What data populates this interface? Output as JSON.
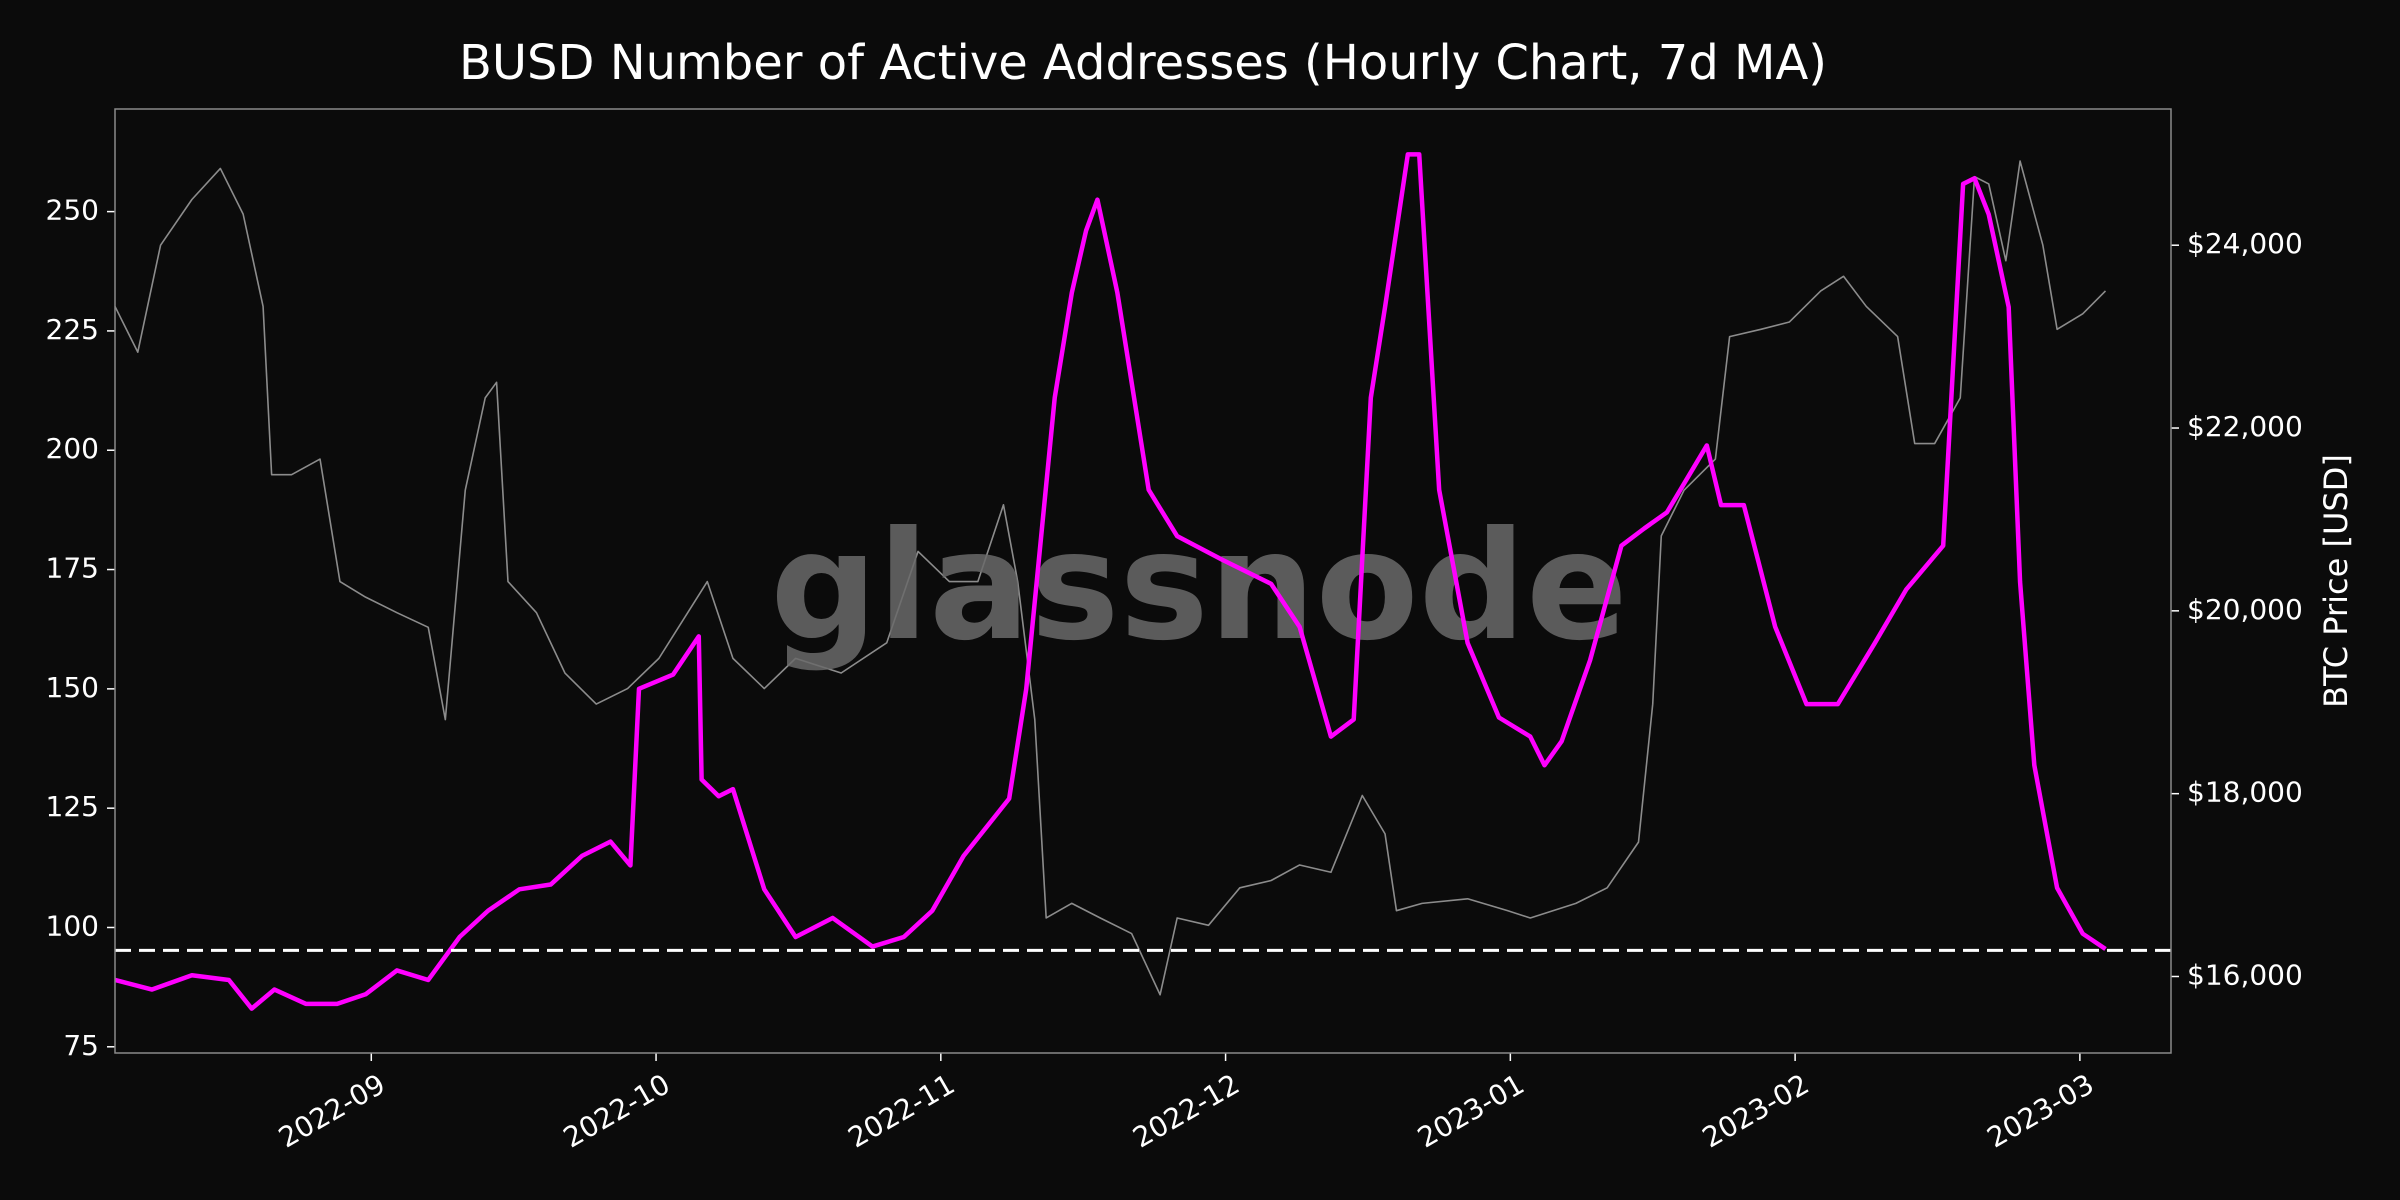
{
  "chart_data": {
    "type": "line",
    "title": "BUSD Number of Active Addresses (Hourly Chart, 7d MA)",
    "y2label": "BTC Price [USD]",
    "watermark": "glassnode",
    "xlim": [
      8.1,
      15.32
    ],
    "xticks": [
      {
        "value": 9,
        "label": "2022-09"
      },
      {
        "value": 10,
        "label": "2022-10"
      },
      {
        "value": 11,
        "label": "2022-11"
      },
      {
        "value": 12,
        "label": "2022-12"
      },
      {
        "value": 13,
        "label": "2023-01"
      },
      {
        "value": 14,
        "label": "2023-02"
      },
      {
        "value": 15,
        "label": "2023-03"
      }
    ],
    "ylim": [
      73.7,
      271.5
    ],
    "yticks": [
      75,
      100,
      125,
      150,
      175,
      200,
      225,
      250
    ],
    "y2lim": [
      15163,
      25490
    ],
    "y2ticks": [
      {
        "value": 16000,
        "label": "$16,000"
      },
      {
        "value": 18000,
        "label": "$18,000"
      },
      {
        "value": 20000,
        "label": "$20,000"
      },
      {
        "value": 22000,
        "label": "$22,000"
      },
      {
        "value": 24000,
        "label": "$24,000"
      }
    ],
    "hline": {
      "value": 95.2,
      "color": "#ffffff"
    },
    "series": [
      {
        "axis": "y2",
        "color": "#8c8c8c",
        "x": [
          8.1,
          8.18,
          8.26,
          8.37,
          8.47,
          8.55,
          8.62,
          8.65,
          8.72,
          8.82,
          8.89,
          8.98,
          9.09,
          9.2,
          9.26,
          9.33,
          9.4,
          9.44,
          9.48,
          9.58,
          9.68,
          9.79,
          9.9,
          10.01,
          10.18,
          10.27,
          10.38,
          10.49,
          10.65,
          10.81,
          10.92,
          11.03,
          11.13,
          11.22,
          11.27,
          11.33,
          11.37,
          11.46,
          11.56,
          11.67,
          11.77,
          11.83,
          11.94,
          12.05,
          12.16,
          12.26,
          12.37,
          12.48,
          12.56,
          12.6,
          12.69,
          12.85,
          12.99,
          13.07,
          13.23,
          13.34,
          13.45,
          13.5,
          13.53,
          13.61,
          13.72,
          13.77,
          13.88,
          13.98,
          14.09,
          14.17,
          14.25,
          14.36,
          14.42,
          14.49,
          14.58,
          14.63,
          14.68,
          14.74,
          14.79,
          14.87,
          14.92,
          15.01,
          15.09
        ],
        "values": [
          23330,
          22830,
          24000,
          24500,
          24840,
          24340,
          23330,
          21490,
          21490,
          21660,
          20320,
          20150,
          19980,
          19820,
          18810,
          21320,
          22330,
          22500,
          20320,
          19980,
          19320,
          18980,
          19150,
          19480,
          20320,
          19480,
          19150,
          19480,
          19320,
          19650,
          20650,
          20320,
          20320,
          21160,
          20320,
          18810,
          16640,
          16800,
          16640,
          16470,
          15800,
          16640,
          16560,
          16970,
          17050,
          17220,
          17140,
          17980,
          17560,
          16720,
          16800,
          16850,
          16720,
          16640,
          16800,
          16970,
          17470,
          18980,
          20820,
          21320,
          21660,
          23000,
          23080,
          23160,
          23500,
          23660,
          23330,
          23000,
          21830,
          21830,
          22330,
          24750,
          24670,
          23830,
          24920,
          24000,
          23080,
          23250,
          23500
        ]
      },
      {
        "axis": "y",
        "color": "#ff00ff",
        "x": [
          8.1,
          8.23,
          8.37,
          8.5,
          8.58,
          8.66,
          8.77,
          8.88,
          8.98,
          9.09,
          9.2,
          9.31,
          9.41,
          9.52,
          9.63,
          9.74,
          9.84,
          9.91,
          9.94,
          10.06,
          10.15,
          10.16,
          10.22,
          10.27,
          10.38,
          10.49,
          10.62,
          10.76,
          10.87,
          10.97,
          11.08,
          11.24,
          11.3,
          11.4,
          11.46,
          11.51,
          11.55,
          11.62,
          11.73,
          11.83,
          11.99,
          12.16,
          12.26,
          12.37,
          12.45,
          12.51,
          12.56,
          12.64,
          12.68,
          12.75,
          12.85,
          12.96,
          13.07,
          13.12,
          13.18,
          13.28,
          13.39,
          13.47,
          13.55,
          13.69,
          13.74,
          13.82,
          13.93,
          14.04,
          14.15,
          14.28,
          14.39,
          14.52,
          14.59,
          14.63,
          14.68,
          14.75,
          14.79,
          14.84,
          14.92,
          15.01,
          15.09
        ],
        "values": [
          89,
          87,
          90,
          89,
          83,
          87,
          84,
          84,
          86,
          91,
          89,
          98,
          103.5,
          108,
          109,
          115,
          118,
          113,
          150,
          153,
          161,
          131,
          127.5,
          129,
          108,
          98,
          102,
          96,
          98,
          103.5,
          115,
          127,
          150,
          211,
          233,
          246,
          252.5,
          233,
          191.7,
          182,
          177,
          172,
          163,
          140,
          143.6,
          211,
          230,
          262,
          262,
          191.7,
          159.6,
          144,
          140,
          134,
          139,
          156,
          180,
          183.6,
          187,
          201,
          188.5,
          188.5,
          163,
          146.8,
          146.8,
          159.6,
          170.8,
          180,
          255.8,
          257,
          249.4,
          230,
          172.4,
          134,
          108.3,
          98.7,
          95.5
        ]
      }
    ]
  }
}
